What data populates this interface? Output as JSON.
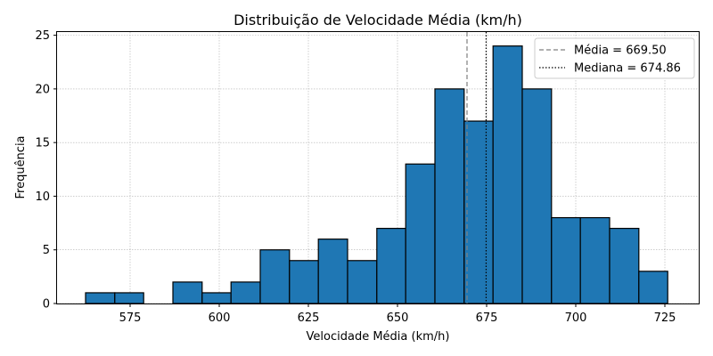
{
  "chart_data": {
    "type": "bar",
    "title": "Distribuição de Velocidade Média (km/h)",
    "xlabel": "Velocidade Média (km/h)",
    "ylabel": "Frequência",
    "xlim": [
      554.5,
      734.5
    ],
    "ylim": [
      0,
      25.3
    ],
    "xticks": [
      575,
      600,
      625,
      650,
      675,
      700,
      725
    ],
    "yticks": [
      0,
      5,
      10,
      15,
      20,
      25
    ],
    "bin_edges": [
      562.5,
      570.7,
      578.8,
      587.0,
      595.2,
      603.3,
      611.5,
      619.7,
      627.8,
      636.0,
      644.2,
      652.3,
      660.5,
      668.7,
      676.8,
      685.0,
      693.2,
      701.3,
      709.5,
      717.7,
      725.8
    ],
    "counts": [
      1,
      1,
      0,
      2,
      1,
      2,
      5,
      4,
      6,
      4,
      7,
      13,
      20,
      17,
      24,
      20,
      8,
      8,
      7,
      3
    ],
    "bar_color": "#1f77b4",
    "edge_color": "#000000",
    "grid": true,
    "legend_position": "top-right",
    "reference_lines": [
      {
        "label": "Média = 669.50",
        "value": 669.5,
        "style": "dashed",
        "color": "#808080"
      },
      {
        "label": "Mediana = 674.86",
        "value": 674.86,
        "style": "dotted",
        "color": "#000000"
      }
    ]
  }
}
